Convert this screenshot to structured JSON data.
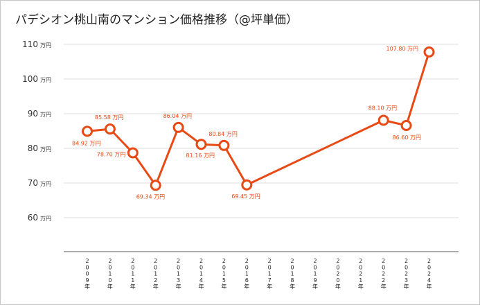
{
  "chart_data": {
    "type": "line",
    "title": "パデシオン桃山南のマンション価格推移（@坪単価）",
    "unit": "万円",
    "yticks": [
      60,
      70,
      80,
      90,
      100,
      110
    ],
    "ylim": [
      50,
      110
    ],
    "categories": [
      "2009年",
      "2010年",
      "2011年",
      "2012年",
      "2013年",
      "2014年",
      "2015年",
      "2016年",
      "2017年",
      "2018年",
      "2019年",
      "2020年",
      "2021年",
      "2022年",
      "2023年",
      "2024年"
    ],
    "series": [
      {
        "name": "@坪単価",
        "color": "#e84a16",
        "values": [
          84.92,
          85.58,
          78.7,
          69.34,
          86.04,
          81.16,
          80.84,
          69.45,
          null,
          null,
          null,
          null,
          null,
          88.1,
          86.6,
          107.8
        ],
        "labels": [
          "84.92 万円",
          "85.58 万円",
          "78.70 万円",
          "69.34 万円",
          "86.04 万円",
          "81.16 万円",
          "80.84 万円",
          "69.45 万円",
          "",
          "",
          "",
          "",
          "",
          "88.10 万円",
          "86.60 万円",
          "107.80 万円"
        ]
      }
    ]
  }
}
